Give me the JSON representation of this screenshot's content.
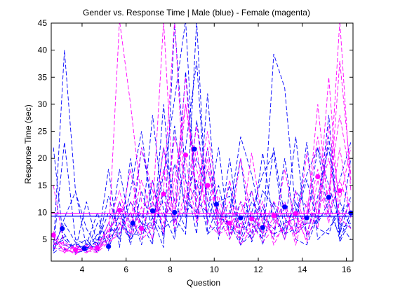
{
  "chart_data": {
    "type": "line",
    "title": "Gender vs. Response Time | Male (blue) - Female (magenta)",
    "xlabel": "Question",
    "ylabel": "Response Time (sec)",
    "xlim": [
      2.6,
      16.3
    ],
    "ylim": [
      1,
      45
    ],
    "xticks": [
      4,
      6,
      8,
      10,
      12,
      14,
      16
    ],
    "yticks": [
      5,
      10,
      15,
      20,
      25,
      30,
      35,
      40,
      45
    ],
    "x": [
      2.7,
      3.2,
      3.7,
      4.2,
      4.7,
      5.2,
      5.7,
      6.2,
      6.7,
      7.2,
      7.7,
      8.2,
      8.7,
      9.2,
      9.7,
      10.2,
      10.7,
      11.2,
      11.7,
      12.2,
      12.7,
      13.2,
      13.7,
      14.2,
      14.7,
      15.2,
      15.7,
      16.2
    ],
    "male_color": "#0000ff",
    "female_color": "#ff00ff",
    "mean_lines": [
      {
        "group": "male",
        "value": 9.3
      },
      {
        "group": "female",
        "value": 9.8
      }
    ],
    "means": {
      "male_x": [
        3.1,
        4.1,
        5.2,
        6.3,
        7.2,
        8.2,
        9.1,
        10.1,
        11.2,
        12.2,
        13.2,
        14.2,
        15.2,
        16.2
      ],
      "male_y": [
        7.0,
        3.3,
        3.7,
        8.0,
        10.3,
        10.0,
        21.7,
        11.5,
        9.0,
        7.2,
        11.0,
        9.0,
        12.8,
        9.9
      ],
      "female_x": [
        2.7,
        3.7,
        4.7,
        5.7,
        6.7,
        7.7,
        8.7,
        9.7,
        10.7,
        11.7,
        12.7,
        13.7,
        14.7,
        15.7
      ],
      "female_y": [
        5.8,
        3.1,
        3.4,
        10.4,
        7.0,
        13.4,
        20.6,
        15.0,
        8.0,
        8.8,
        9.4,
        9.8,
        16.6,
        14.0
      ]
    },
    "series": [
      {
        "group": "male",
        "values": [
          3.2,
          40.0,
          14.0,
          3.5,
          3.8,
          13.0,
          6.0,
          12.0,
          8.0,
          7.0,
          17.0,
          31.0,
          45.5,
          8.0,
          22.0,
          9.0,
          8.0,
          4.0,
          10.0,
          17.0,
          21.0,
          6.0,
          7.0,
          8.0,
          8.0,
          12.0,
          5.0,
          10.0
        ]
      },
      {
        "group": "male",
        "values": [
          22.0,
          3.0,
          4.2,
          2.8,
          5.0,
          4.5,
          8.0,
          5.0,
          22.0,
          12.0,
          7.0,
          9.0,
          6.0,
          45.5,
          6.0,
          12.0,
          13.0,
          7.0,
          8.0,
          5.0,
          39.3,
          33.0,
          10.0,
          17.0,
          22.0,
          9.0,
          16.0,
          23.0
        ]
      },
      {
        "group": "male",
        "values": [
          3.5,
          23.0,
          5.0,
          4.0,
          10.0,
          3.0,
          10.0,
          5.0,
          8.0,
          4.0,
          30.0,
          6.0,
          11.0,
          20.0,
          14.0,
          7.0,
          10.0,
          24.0,
          17.0,
          8.0,
          6.0,
          7.0,
          24.0,
          5.5,
          9.0,
          28.0,
          4.5,
          9.0
        ]
      },
      {
        "group": "male",
        "values": [
          2.8,
          9.0,
          13.8,
          7.0,
          3.5,
          8.0,
          5.0,
          14.0,
          25.0,
          9.0,
          3.5,
          45.0,
          16.0,
          6.0,
          32.0,
          5.0,
          20.0,
          5.0,
          12.0,
          9.0,
          7.0,
          8.0,
          9.0,
          16.0,
          8.0,
          24.0,
          6.0,
          20.0
        ]
      },
      {
        "group": "male",
        "values": [
          4.0,
          5.0,
          3.0,
          12.0,
          4.0,
          18.0,
          3.5,
          20.0,
          6.0,
          28.0,
          10.0,
          5.0,
          22.0,
          38.0,
          8.0,
          15.0,
          6.0,
          9.0,
          5.0,
          14.0,
          11.0,
          5.0,
          14.0,
          11.0,
          7.0,
          6.0,
          12.0,
          7.0
        ]
      },
      {
        "group": "male",
        "values": [
          3.0,
          6.0,
          2.5,
          3.0,
          6.0,
          4.0,
          18.0,
          7.0,
          10.0,
          5.0,
          14.0,
          8.0,
          36.0,
          12.0,
          10.0,
          22.0,
          5.0,
          12.0,
          9.0,
          6.0,
          22.0,
          9.0,
          6.0,
          8.0,
          22.0,
          15.0,
          8.0,
          5.0
        ]
      },
      {
        "group": "male",
        "values": [
          2.5,
          4.0,
          3.8,
          5.0,
          2.5,
          7.0,
          6.0,
          10.0,
          4.0,
          16.0,
          5.0,
          26.0,
          9.0,
          16.0,
          6.0,
          8.0,
          15.0,
          4.0,
          6.0,
          21.0,
          8.0,
          12.0,
          5.0,
          4.0,
          9.0,
          10.0,
          6.0,
          13.0
        ]
      },
      {
        "group": "male",
        "values": [
          3.8,
          8.0,
          4.5,
          2.8,
          8.0,
          5.0,
          12.0,
          4.0,
          14.0,
          7.0,
          22.0,
          12.0,
          7.0,
          27.0,
          12.0,
          6.0,
          9.0,
          20.0,
          4.5,
          11.0,
          5.0,
          20.0,
          6.5,
          23.0,
          5.0,
          7.0,
          10.0,
          12.0
        ]
      },
      {
        "group": "male",
        "values": [
          3.4,
          5.5,
          3.3,
          4.0,
          4.5,
          10.0,
          8.0,
          6.0,
          6.0,
          9.0,
          6.0,
          19.0,
          12.0,
          10.0,
          18.0,
          10.0,
          7.0,
          6.0,
          14.0,
          4.0,
          12.0,
          6.0,
          12.0,
          6.0,
          13.0,
          22.0,
          7.0,
          8.0
        ]
      },
      {
        "group": "female",
        "values": [
          15.0,
          3.5,
          2.2,
          4.0,
          3.0,
          5.0,
          45.5,
          30.0,
          12.0,
          10.0,
          45.5,
          9.0,
          30.0,
          14.0,
          25.0,
          11.0,
          6.0,
          20.0,
          9.0,
          7.0,
          12.0,
          9.0,
          6.0,
          10.0,
          24.0,
          12.0,
          45.5,
          14.0
        ]
      },
      {
        "group": "female",
        "values": [
          6.0,
          2.5,
          3.5,
          2.5,
          4.0,
          4.0,
          7.0,
          18.0,
          6.0,
          8.0,
          14.0,
          45.5,
          10.0,
          22.0,
          8.0,
          6.0,
          16.0,
          6.0,
          21.0,
          8.0,
          6.0,
          18.0,
          7.0,
          8.0,
          30.0,
          10.0,
          38.0,
          17.0
        ]
      },
      {
        "group": "female",
        "values": [
          5.0,
          4.0,
          3.0,
          3.5,
          2.8,
          6.0,
          12.0,
          8.0,
          22.0,
          14.0,
          9.0,
          12.0,
          35.0,
          10.0,
          18.0,
          9.0,
          5.0,
          10.0,
          14.0,
          5.5,
          8.0,
          12.0,
          5.0,
          21.0,
          9.0,
          35.0,
          8.0,
          12.0
        ]
      },
      {
        "group": "female",
        "values": [
          4.5,
          3.0,
          2.6,
          3.2,
          3.6,
          5.0,
          8.0,
          5.5,
          9.0,
          16.0,
          6.0,
          24.0,
          16.0,
          12.0,
          22.0,
          7.0,
          10.0,
          4.0,
          7.0,
          12.0,
          4.0,
          8.0,
          9.0,
          5.0,
          16.0,
          8.0,
          22.0,
          9.0
        ]
      },
      {
        "group": "female",
        "values": [
          5.5,
          2.8,
          4.0,
          2.7,
          3.3,
          8.0,
          14.0,
          6.0,
          11.0,
          5.0,
          22.0,
          8.0,
          12.0,
          26.0,
          12.0,
          13.0,
          6.0,
          8.0,
          5.0,
          9.0,
          10.0,
          5.0,
          14.0,
          6.0,
          12.0,
          20.0,
          9.0,
          7.0
        ]
      },
      {
        "group": "female",
        "values": [
          4.0,
          4.5,
          3.3,
          3.0,
          4.5,
          6.5,
          10.0,
          12.0,
          7.0,
          12.0,
          8.0,
          16.0,
          30.0,
          18.0,
          10.0,
          8.0,
          12.0,
          5.0,
          8.0,
          4.5,
          7.0,
          11.0,
          4.0,
          12.0,
          7.0,
          26.0,
          12.0,
          22.0
        ]
      },
      {
        "group": "female",
        "values": [
          6.5,
          3.3,
          2.4,
          3.8,
          3.2,
          7.0,
          9.0,
          7.0,
          16.0,
          9.0,
          12.0,
          10.0,
          20.0,
          8.0,
          15.0,
          10.0,
          8.0,
          7.0,
          10.0,
          6.0,
          9.0,
          6.0,
          8.0,
          9.0,
          18.0,
          9.0,
          16.0,
          10.0
        ]
      },
      {
        "group": "female",
        "values": [
          3.6,
          2.6,
          3.8,
          2.9,
          2.6,
          4.5,
          6.0,
          10.0,
          5.0,
          7.0,
          18.0,
          7.0,
          14.0,
          9.0,
          20.0,
          6.0,
          7.0,
          12.0,
          6.0,
          10.0,
          5.0,
          7.0,
          10.0,
          4.5,
          11.0,
          14.0,
          28.0,
          16.0
        ]
      }
    ]
  }
}
